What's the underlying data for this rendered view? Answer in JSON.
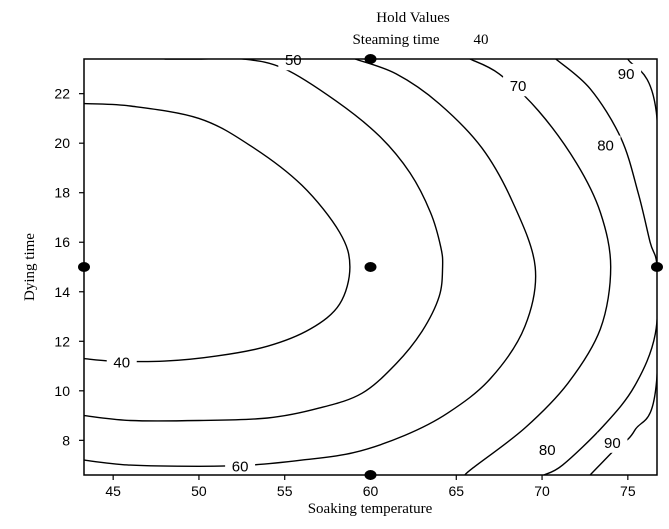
{
  "chart_data": {
    "type": "contour",
    "hold_values": {
      "title": "Hold Values",
      "label": "Steaming time",
      "value": "40"
    },
    "xlabel": "Soaking temperature",
    "ylabel": "Dying time",
    "xlim": [
      43.3,
      76.7
    ],
    "ylim": [
      6.6,
      23.4
    ],
    "x_ticks": [
      45,
      50,
      55,
      60,
      65,
      70,
      75
    ],
    "y_ticks": [
      8,
      10,
      12,
      14,
      16,
      18,
      20,
      22
    ],
    "design_points": [
      {
        "x": 60,
        "y": 23.4
      },
      {
        "x": 43.3,
        "y": 15
      },
      {
        "x": 60,
        "y": 15
      },
      {
        "x": 76.7,
        "y": 15
      },
      {
        "x": 60,
        "y": 6.6
      }
    ],
    "contours": [
      {
        "level": "40",
        "points": [
          [
            43.3,
            21.6
          ],
          [
            46,
            21.5
          ],
          [
            50,
            21.0
          ],
          [
            53,
            19.9
          ],
          [
            56,
            18.3
          ],
          [
            58.2,
            16.4
          ],
          [
            58.8,
            15
          ],
          [
            58.2,
            13.5
          ],
          [
            56.5,
            12.5
          ],
          [
            54,
            11.8
          ],
          [
            51,
            11.4
          ],
          [
            48,
            11.2
          ],
          [
            45,
            11.2
          ],
          [
            43.3,
            11.3
          ]
        ],
        "label_pos": [
          [
            45.5,
            11.15
          ]
        ]
      },
      {
        "level": "50",
        "points": [
          [
            43.3,
            6.8
          ],
          [
            44,
            6.8
          ],
          [
            48,
            23.4
          ],
          [
            50,
            23.4
          ],
          [
            52.6,
            23.4
          ],
          [
            55,
            23.0
          ],
          [
            58,
            21.7
          ],
          [
            60.5,
            20.3
          ],
          [
            62.3,
            18.8
          ],
          [
            63.5,
            17.2
          ],
          [
            64.1,
            15.8
          ],
          [
            64.2,
            15
          ],
          [
            64,
            13.8
          ],
          [
            63,
            12.4
          ],
          [
            61.5,
            11.1
          ],
          [
            59.5,
            9.9
          ],
          [
            57,
            9.3
          ],
          [
            54,
            8.9
          ],
          [
            50,
            8.8
          ],
          [
            46,
            8.8
          ],
          [
            43.3,
            9.0
          ]
        ],
        "label_pos": [
          [
            55.5,
            23.35
          ]
        ]
      },
      {
        "level": "60",
        "points": [
          [
            59.1,
            23.4
          ],
          [
            61.5,
            22.8
          ],
          [
            64,
            21.6
          ],
          [
            66.5,
            19.8
          ],
          [
            68.3,
            17.6
          ],
          [
            69.6,
            15
          ],
          [
            69,
            12.6
          ],
          [
            67,
            10.5
          ],
          [
            64.5,
            9.1
          ],
          [
            62,
            8.2
          ],
          [
            59,
            7.5
          ],
          [
            56,
            7.2
          ],
          [
            53,
            7.0
          ],
          [
            50,
            6.95
          ],
          [
            46,
            7.0
          ],
          [
            43.3,
            7.2
          ]
        ],
        "label_pos": [
          [
            52.4,
            6.95
          ]
        ]
      },
      {
        "level": "70",
        "points": [
          [
            65.8,
            23.4
          ],
          [
            67.5,
            22.8
          ],
          [
            69.8,
            21.3
          ],
          [
            72,
            19.2
          ],
          [
            73.4,
            17.2
          ],
          [
            74,
            15
          ],
          [
            73.4,
            12.5
          ],
          [
            71.5,
            10.3
          ],
          [
            69,
            8.5
          ],
          [
            66,
            6.9
          ],
          [
            65.5,
            6.6
          ]
        ],
        "label_pos": [
          [
            68.6,
            22.3
          ]
        ]
      },
      {
        "level": "80",
        "points": [
          [
            70.8,
            23.4
          ],
          [
            72.8,
            22.2
          ],
          [
            74.6,
            20.2
          ],
          [
            75.6,
            18.0
          ],
          [
            76.3,
            16.0
          ],
          [
            76.7,
            15
          ],
          [
            76.6,
            12.3
          ],
          [
            75.4,
            10.2
          ],
          [
            73.6,
            8.6
          ],
          [
            71.2,
            7.0
          ],
          [
            70.1,
            6.6
          ]
        ],
        "label_pos": [
          [
            73.7,
            19.9
          ],
          [
            70.3,
            7.6
          ]
        ]
      },
      {
        "level": "90",
        "points": [
          [
            75.0,
            23.4
          ],
          [
            76.7,
            21.0
          ],
          [
            76.7,
            10.6
          ],
          [
            75.4,
            8.4
          ],
          [
            74.2,
            7.6
          ],
          [
            72.8,
            6.6
          ]
        ],
        "label_pos": [
          [
            74.9,
            22.8
          ],
          [
            74.1,
            7.9
          ]
        ]
      }
    ]
  }
}
